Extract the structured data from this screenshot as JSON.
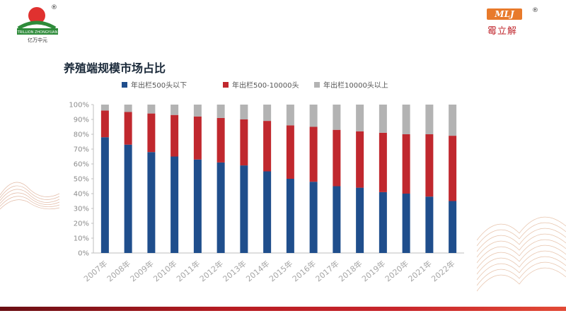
{
  "branding": {
    "left_logo_text": "TRILLION ZHONGYUAN",
    "left_logo_caption": "亿万中元",
    "right_logo_mark": "MLJ",
    "right_logo_text": "霉立解",
    "registered": "®"
  },
  "colors": {
    "series1": "#1f4e8c",
    "series2": "#c0282e",
    "series3": "#b3b3b3",
    "bottom_bar": "#b71c22"
  },
  "chart_data": {
    "type": "bar",
    "stacked": true,
    "title": "养殖端规模市场占比",
    "categories": [
      "2007年",
      "2008年",
      "2009年",
      "2010年",
      "2011年",
      "2012年",
      "2013年",
      "2014年",
      "2015年",
      "2016年",
      "2017年",
      "2018年",
      "2019年",
      "2020年",
      "2021年",
      "2022年"
    ],
    "series": [
      {
        "name": "年出栏500头以下",
        "values": [
          78,
          73,
          68,
          65,
          63,
          61,
          59,
          55,
          50,
          48,
          45,
          44,
          41,
          40,
          38,
          35
        ]
      },
      {
        "name": "年出栏500-10000头",
        "values": [
          18,
          22,
          26,
          28,
          29,
          30,
          31,
          34,
          36,
          37,
          38,
          38,
          40,
          40,
          42,
          44
        ]
      },
      {
        "name": "年出栏10000头以上",
        "values": [
          4,
          5,
          6,
          7,
          8,
          9,
          10,
          11,
          14,
          15,
          17,
          18,
          19,
          20,
          20,
          21
        ]
      }
    ],
    "ylim": [
      0,
      100
    ],
    "yticks": [
      "0%",
      "10%",
      "20%",
      "30%",
      "40%",
      "50%",
      "60%",
      "70%",
      "80%",
      "90%",
      "100%"
    ],
    "legend_position": "top",
    "grid": false
  }
}
